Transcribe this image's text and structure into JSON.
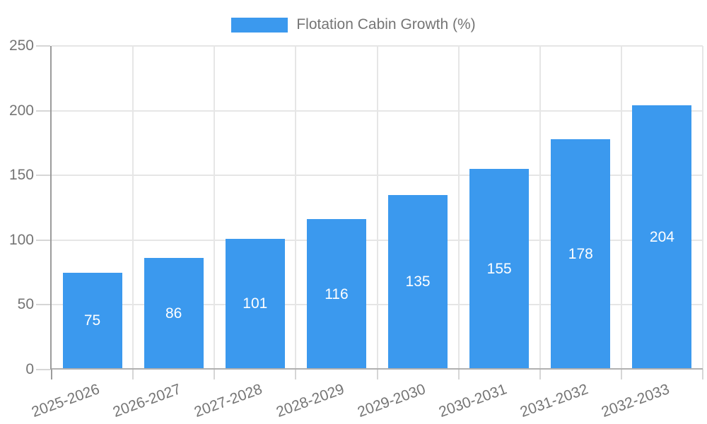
{
  "chart_data": {
    "type": "bar",
    "title": "Flotation Cabin Growth (%)",
    "categories": [
      "2025-2026",
      "2026-2027",
      "2027-2028",
      "2028-2029",
      "2029-2030",
      "2030-2031",
      "2031-2032",
      "2032-2033"
    ],
    "values": [
      75,
      86,
      101,
      116,
      135,
      155,
      178,
      204
    ],
    "xlabel": "",
    "ylabel": "",
    "ylim": [
      0,
      250
    ],
    "yticks": [
      0,
      50,
      100,
      150,
      200,
      250
    ],
    "grid": true,
    "legend_position": "top",
    "x_tick_rotation_deg": -20,
    "colors": {
      "bar": "#3b99ee",
      "grid": "#e6e6e6",
      "axis_y": "#9b9b9b",
      "axis_x": "#b0b0b0",
      "tick": "#d6d6d6",
      "tick_label": "#757575",
      "legend_text": "#757575",
      "value_label": "#ffffff"
    }
  }
}
